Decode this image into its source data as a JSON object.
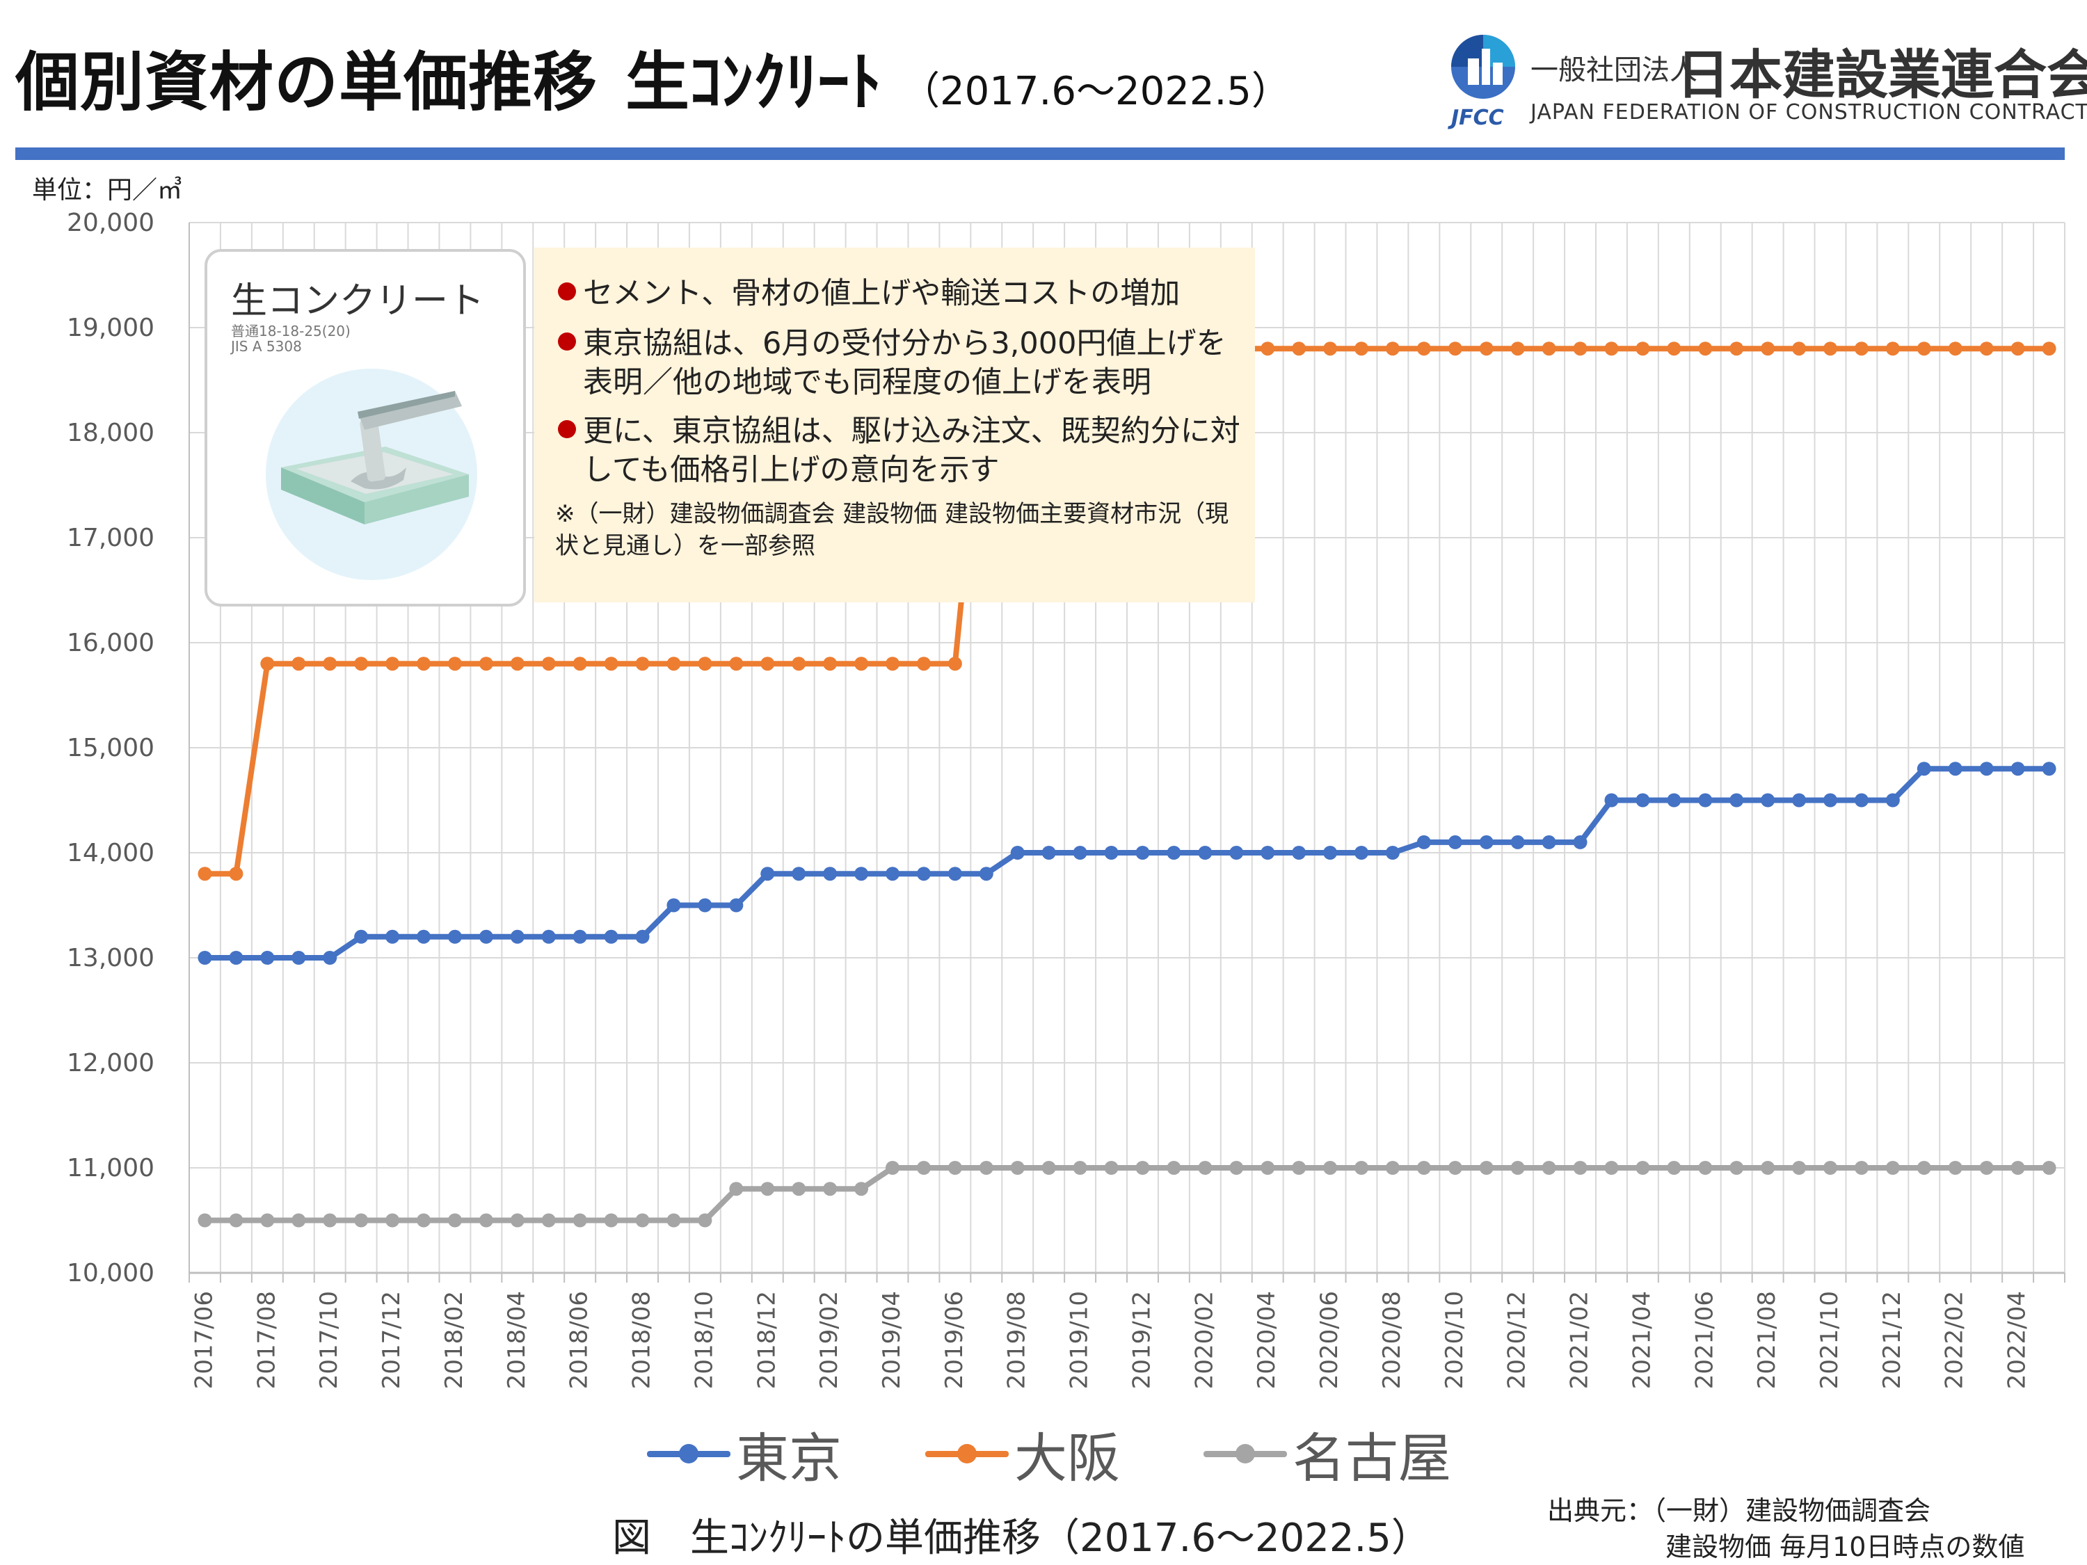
{
  "header": {
    "title_main": "個別資材の単価推移",
    "title_product": "生ｺﾝｸﾘｰﾄ",
    "title_range": "（2017.6～2022.5）"
  },
  "org": {
    "logo_text": "JFCC",
    "prefix": "一般社団法人",
    "name": "日本建設業連合会",
    "english": "JAPAN FEDERATION OF CONSTRUCTION CONTRACTORS"
  },
  "unit_label": "単位：円／㎥",
  "product_card": {
    "title": "生コンクリート",
    "spec_line1": "普通18-18-25(20)",
    "spec_line2": "JIS A 5308"
  },
  "callout": {
    "bullets": [
      "セメント、骨材の値上げや輸送コストの増加",
      "東京協組は、6月の受付分から3,000円値上げを表明／他の地域でも同程度の値上げを表明",
      "更に、東京協組は、駆け込み注文、既契約分に対しても価格引上げの意向を示す"
    ],
    "note": "※（一財）建設物価調査会 建設物価 建設物価主要資材市況（現状と見通し）を一部参照"
  },
  "caption": "図　生ｺﾝｸﾘｰﾄの単価推移（2017.6～2022.5）",
  "source": {
    "line1": "出典元：（一財）建設物価調査会",
    "line2": "建設物価 毎月10日時点の数値"
  },
  "colors": {
    "accent_bar": "#4472c4",
    "tokyo": "#4472c4",
    "osaka": "#ed7d31",
    "nagoya": "#a5a5a5",
    "callout_bg": "#fff4dc",
    "bullet": "#c00000"
  },
  "chart_data": {
    "type": "line",
    "ylim": [
      10000,
      20000
    ],
    "yticks": [
      "10,000",
      "11,000",
      "12,000",
      "13,000",
      "14,000",
      "15,000",
      "16,000",
      "17,000",
      "18,000",
      "19,000",
      "20,000"
    ],
    "grid": true,
    "legend_position": "bottom",
    "x": [
      "2017/06",
      "2017/07",
      "2017/08",
      "2017/09",
      "2017/10",
      "2017/11",
      "2017/12",
      "2018/01",
      "2018/02",
      "2018/03",
      "2018/04",
      "2018/05",
      "2018/06",
      "2018/07",
      "2018/08",
      "2018/09",
      "2018/10",
      "2018/11",
      "2018/12",
      "2019/01",
      "2019/02",
      "2019/03",
      "2019/04",
      "2019/05",
      "2019/06",
      "2019/07",
      "2019/08",
      "2019/09",
      "2019/10",
      "2019/11",
      "2019/12",
      "2020/01",
      "2020/02",
      "2020/03",
      "2020/04",
      "2020/05",
      "2020/06",
      "2020/07",
      "2020/08",
      "2020/09",
      "2020/10",
      "2020/11",
      "2020/12",
      "2021/01",
      "2021/02",
      "2021/03",
      "2021/04",
      "2021/05",
      "2021/06",
      "2021/07",
      "2021/08",
      "2021/09",
      "2021/10",
      "2021/11",
      "2021/12",
      "2022/01",
      "2022/02",
      "2022/03",
      "2022/04",
      "2022/05"
    ],
    "x_tick_labels": [
      "2017/06",
      "2017/08",
      "2017/10",
      "2017/12",
      "2018/02",
      "2018/04",
      "2018/06",
      "2018/08",
      "2018/10",
      "2018/12",
      "2019/02",
      "2019/04",
      "2019/06",
      "2019/08",
      "2019/10",
      "2019/12",
      "2020/02",
      "2020/04",
      "2020/06",
      "2020/08",
      "2020/10",
      "2020/12",
      "2021/02",
      "2021/04",
      "2021/06",
      "2021/08",
      "2021/10",
      "2021/12",
      "2022/02",
      "2022/04"
    ],
    "series": [
      {
        "name": "東京",
        "color": "#4472c4",
        "values": [
          13000,
          13000,
          13000,
          13000,
          13000,
          13200,
          13200,
          13200,
          13200,
          13200,
          13200,
          13200,
          13200,
          13200,
          13200,
          13500,
          13500,
          13500,
          13800,
          13800,
          13800,
          13800,
          13800,
          13800,
          13800,
          13800,
          14000,
          14000,
          14000,
          14000,
          14000,
          14000,
          14000,
          14000,
          14000,
          14000,
          14000,
          14000,
          14000,
          14100,
          14100,
          14100,
          14100,
          14100,
          14100,
          14500,
          14500,
          14500,
          14500,
          14500,
          14500,
          14500,
          14500,
          14500,
          14500,
          14800,
          14800,
          14800,
          14800,
          14800
        ]
      },
      {
        "name": "大阪",
        "color": "#ed7d31",
        "values": [
          13800,
          13800,
          15800,
          15800,
          15800,
          15800,
          15800,
          15800,
          15800,
          15800,
          15800,
          15800,
          15800,
          15800,
          15800,
          15800,
          15800,
          15800,
          15800,
          15800,
          15800,
          15800,
          15800,
          15800,
          15800,
          18800,
          18800,
          18800,
          18800,
          18800,
          18800,
          18800,
          18800,
          18800,
          18800,
          18800,
          18800,
          18800,
          18800,
          18800,
          18800,
          18800,
          18800,
          18800,
          18800,
          18800,
          18800,
          18800,
          18800,
          18800,
          18800,
          18800,
          18800,
          18800,
          18800,
          18800,
          18800,
          18800,
          18800,
          18800
        ]
      },
      {
        "name": "名古屋",
        "color": "#a5a5a5",
        "values": [
          10500,
          10500,
          10500,
          10500,
          10500,
          10500,
          10500,
          10500,
          10500,
          10500,
          10500,
          10500,
          10500,
          10500,
          10500,
          10500,
          10500,
          10800,
          10800,
          10800,
          10800,
          10800,
          11000,
          11000,
          11000,
          11000,
          11000,
          11000,
          11000,
          11000,
          11000,
          11000,
          11000,
          11000,
          11000,
          11000,
          11000,
          11000,
          11000,
          11000,
          11000,
          11000,
          11000,
          11000,
          11000,
          11000,
          11000,
          11000,
          11000,
          11000,
          11000,
          11000,
          11000,
          11000,
          11000,
          11000,
          11000,
          11000,
          11000,
          11000
        ]
      }
    ]
  }
}
